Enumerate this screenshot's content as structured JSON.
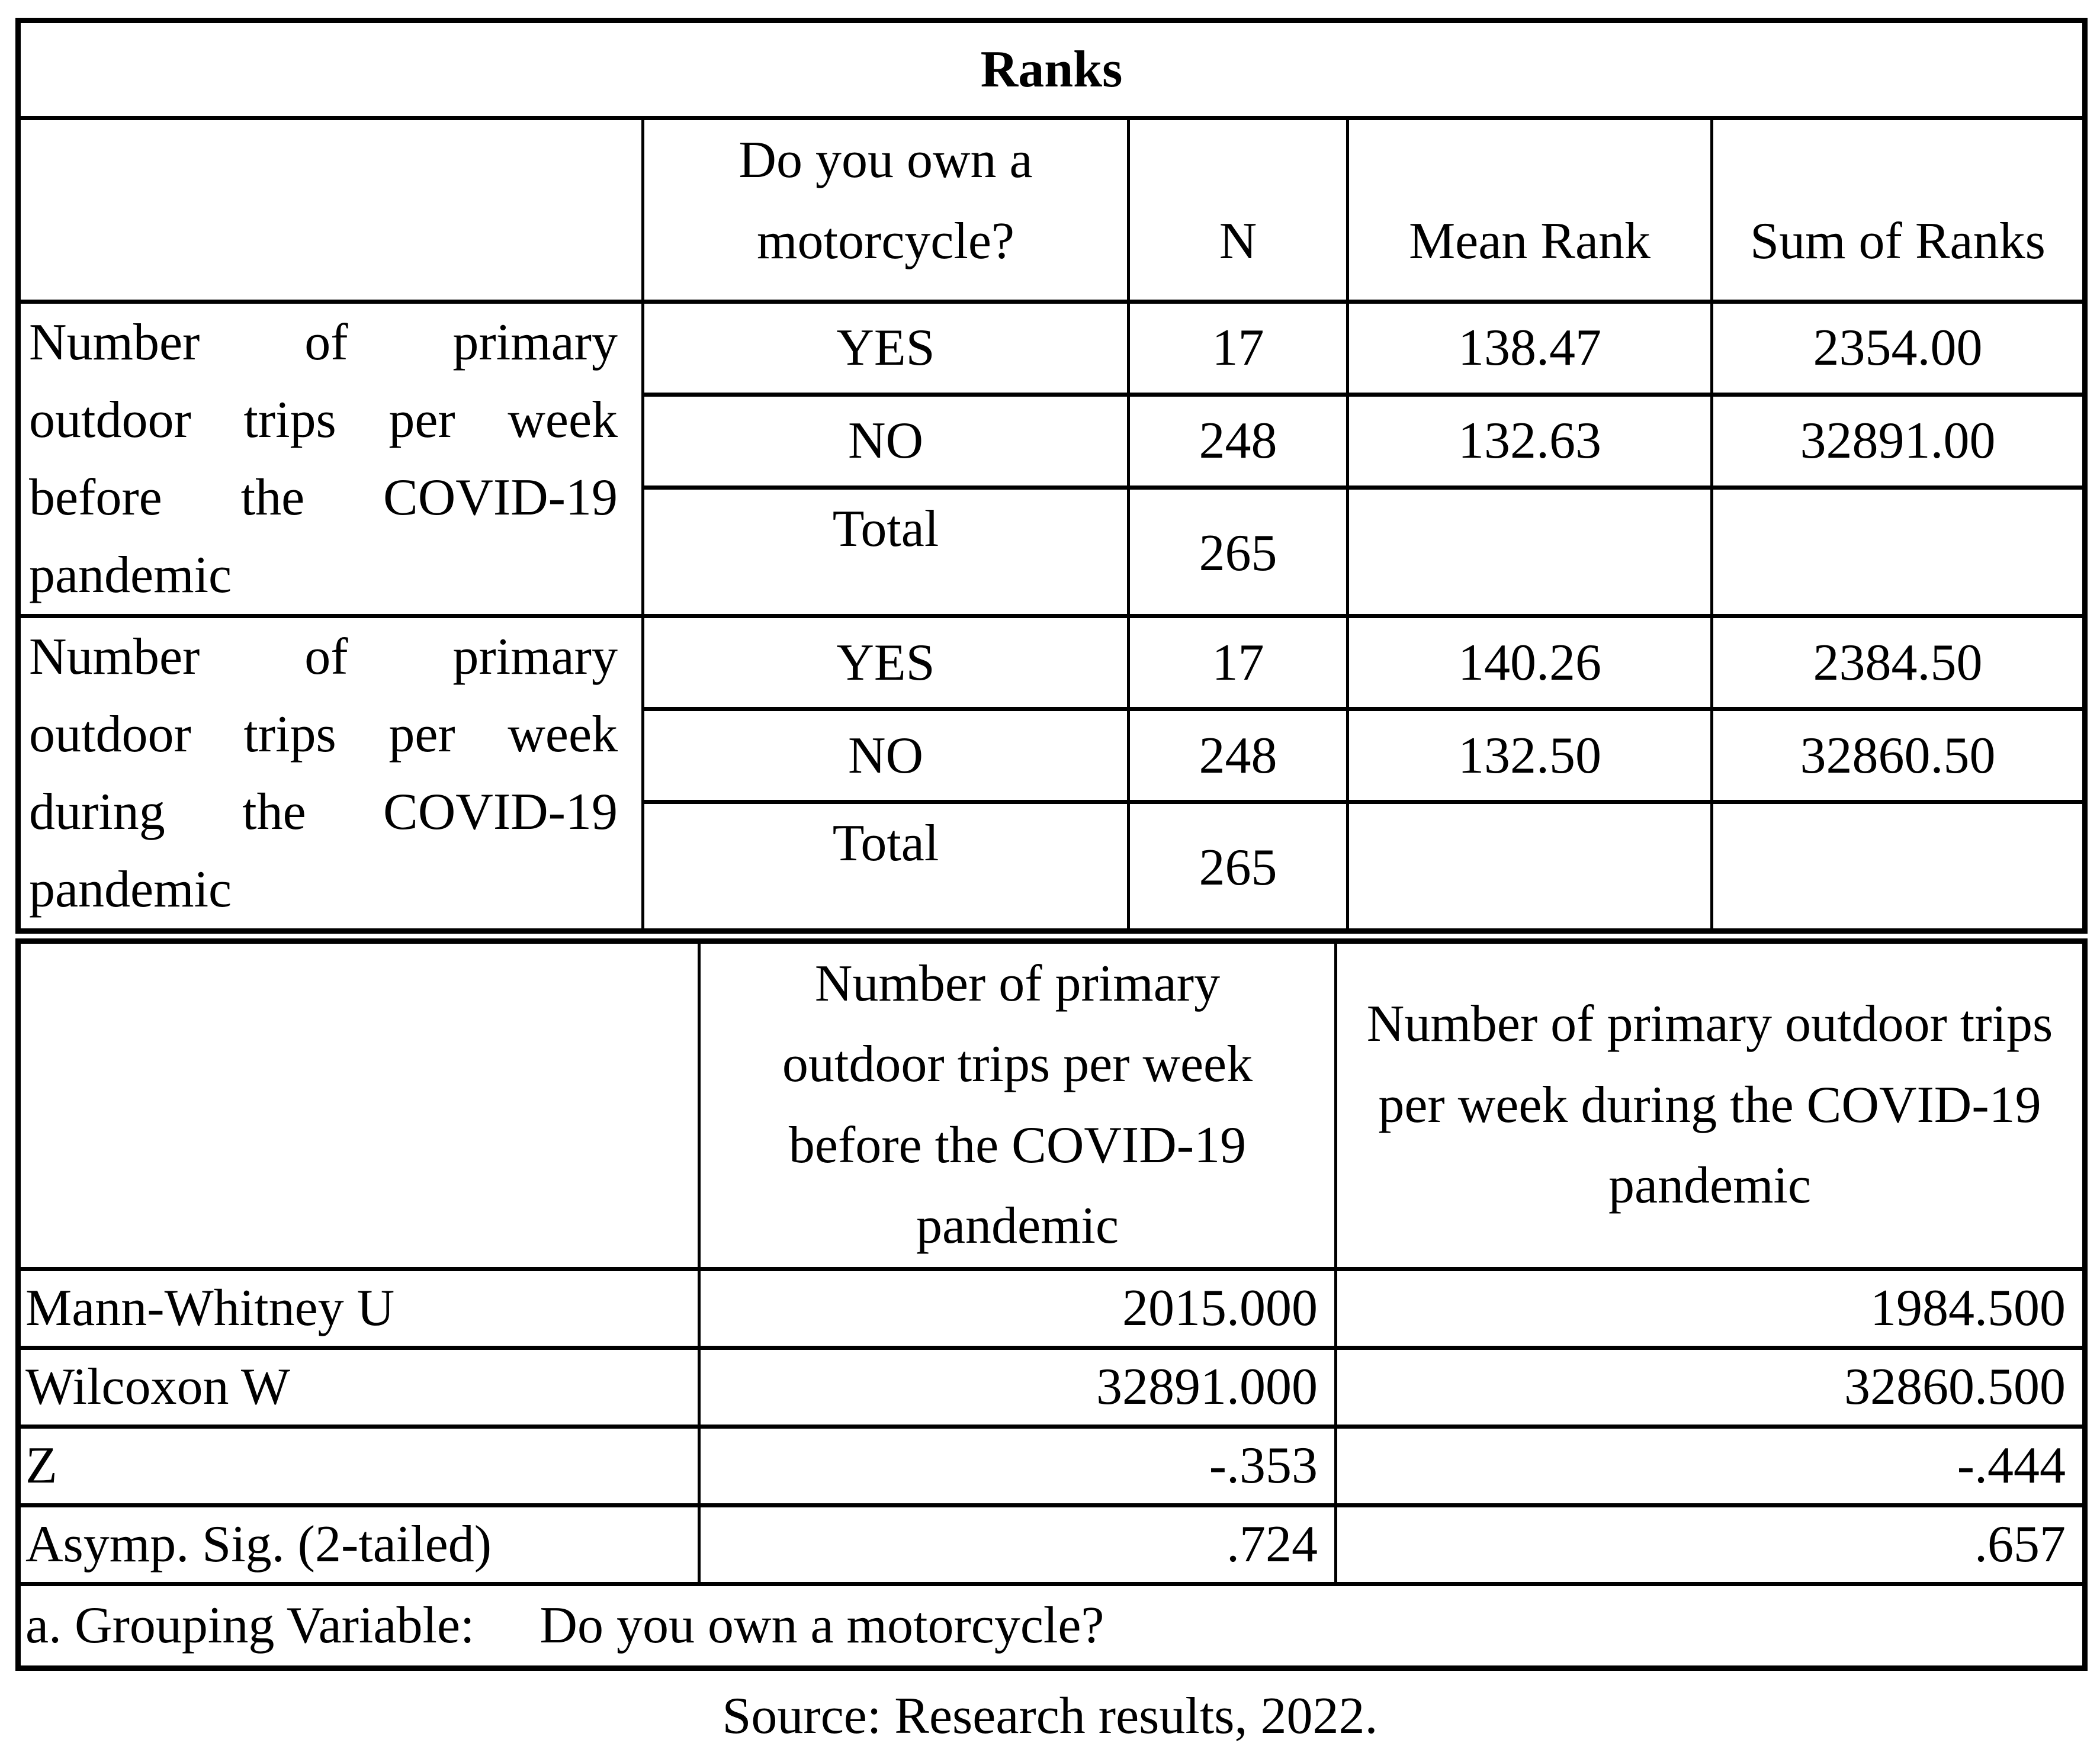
{
  "page": {
    "background_color": "#ffffff",
    "text_color": "#000000"
  },
  "ranks_table": {
    "title": "Ranks",
    "columns": {
      "group": "Do you own a\nmotorcycle?",
      "n": "N",
      "mean_rank": "Mean Rank",
      "sum_of_ranks": "Sum of Ranks"
    },
    "groups": [
      {
        "label_lines": [
          "Number of primary",
          "outdoor trips per week",
          "before the COVID-19",
          "pandemic"
        ],
        "rows": [
          {
            "group": "YES",
            "n": "17",
            "mean_rank": "138.47",
            "sum_of_ranks": "2354.00"
          },
          {
            "group": "NO",
            "n": "248",
            "mean_rank": "132.63",
            "sum_of_ranks": "32891.00"
          },
          {
            "group": "Total",
            "n": "265",
            "mean_rank": "",
            "sum_of_ranks": ""
          }
        ]
      },
      {
        "label_lines": [
          "Number of primary",
          "outdoor trips per week",
          "during the COVID-19",
          "pandemic"
        ],
        "rows": [
          {
            "group": "YES",
            "n": "17",
            "mean_rank": "140.26",
            "sum_of_ranks": "2384.50"
          },
          {
            "group": "NO",
            "n": "248",
            "mean_rank": "132.50",
            "sum_of_ranks": "32860.50"
          },
          {
            "group": "Total",
            "n": "265",
            "mean_rank": "",
            "sum_of_ranks": ""
          }
        ]
      }
    ]
  },
  "test_table": {
    "columns": {
      "before": "Number of primary\noutdoor trips per week\nbefore the COVID-19\npandemic",
      "during": "Number of primary outdoor trips\nper week during the COVID-19\npandemic"
    },
    "rows": [
      {
        "label": "Mann-Whitney U",
        "before": "2015.000",
        "during": "1984.500"
      },
      {
        "label": "Wilcoxon W",
        "before": "32891.000",
        "during": "32860.500"
      },
      {
        "label": "Z",
        "before": "-.353",
        "during": "-.444"
      },
      {
        "label": "Asymp. Sig. (2-tailed)",
        "before": ".724",
        "during": ".657"
      }
    ],
    "footnote": "a. Grouping Variable:     Do you own a motorcycle?"
  },
  "source_note": "Source: Research results, 2022."
}
